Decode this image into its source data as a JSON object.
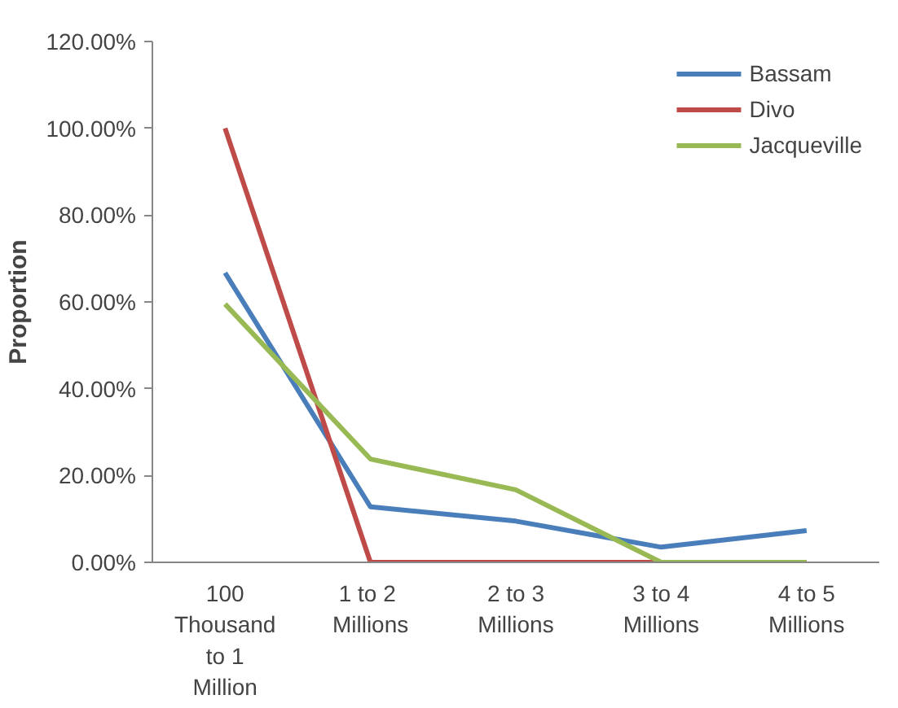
{
  "chart_data": {
    "type": "line",
    "ylabel": "Proportion",
    "categories": [
      "100 Thousand to 1 Million",
      "1 to  2 Millions",
      "2 to 3 Millions",
      "3 to 4 Millions",
      "4 to 5 Millions"
    ],
    "series": [
      {
        "name": "Bassam",
        "color": "#4a7ebb",
        "values": [
          66.7,
          12.8,
          9.5,
          3.5,
          7.3
        ]
      },
      {
        "name": "Divo",
        "color": "#be4b48",
        "values": [
          100,
          0,
          0,
          0,
          0
        ]
      },
      {
        "name": "Jacqueville",
        "color": "#98b954",
        "values": [
          59.5,
          23.8,
          16.7,
          0,
          0
        ]
      }
    ],
    "ylim": [
      0,
      120
    ],
    "yticks": [
      {
        "value": 0,
        "label": "0.00%"
      },
      {
        "value": 20,
        "label": "20.00%"
      },
      {
        "value": 40,
        "label": "40.00%"
      },
      {
        "value": 60,
        "label": "60.00%"
      },
      {
        "value": 80,
        "label": "80.00%"
      },
      {
        "value": 100,
        "label": "100.00%"
      },
      {
        "value": 120,
        "label": "120.00%"
      }
    ],
    "grid": false,
    "legend": "top right",
    "marker": "none",
    "line_style": "solid"
  }
}
